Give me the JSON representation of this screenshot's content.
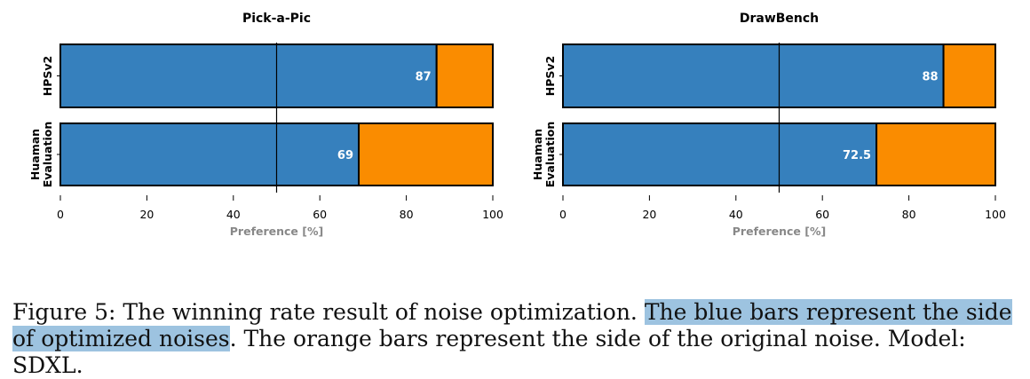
{
  "colors": {
    "optimized": "#3680bd",
    "original": "#fa8c00",
    "axis_label": "#888888"
  },
  "chart_data": [
    {
      "type": "bar",
      "orientation": "horizontal",
      "stacked": true,
      "title": "Pick-a-Pic",
      "xlabel": "Preference [%]",
      "xlim": [
        0,
        100
      ],
      "xticks": [
        0,
        20,
        40,
        60,
        80,
        100
      ],
      "reference_line": 50,
      "categories": [
        "HPSv2",
        "Huaman\nEvaluation"
      ],
      "series": [
        {
          "values": [
            87,
            69
          ],
          "data_labels": [
            "87",
            "69"
          ]
        },
        {
          "values": [
            13,
            31
          ]
        }
      ]
    },
    {
      "type": "bar",
      "orientation": "horizontal",
      "stacked": true,
      "title": "DrawBench",
      "xlabel": "Preference [%]",
      "xlim": [
        0,
        100
      ],
      "xticks": [
        0,
        20,
        40,
        60,
        80,
        100
      ],
      "reference_line": 50,
      "categories": [
        "HPSv2",
        "Huaman\nEvaluation"
      ],
      "series": [
        {
          "values": [
            88,
            72.5
          ],
          "data_labels": [
            "88",
            "72.5"
          ]
        },
        {
          "values": [
            12,
            27.5
          ]
        }
      ]
    }
  ],
  "caption": {
    "before": "Figure 5: The winning rate result of noise optimization. ",
    "highlight": "The blue bars represent the side of optimized noises",
    "after": ". The orange bars represent the side of the original noise. Model: SDXL."
  }
}
